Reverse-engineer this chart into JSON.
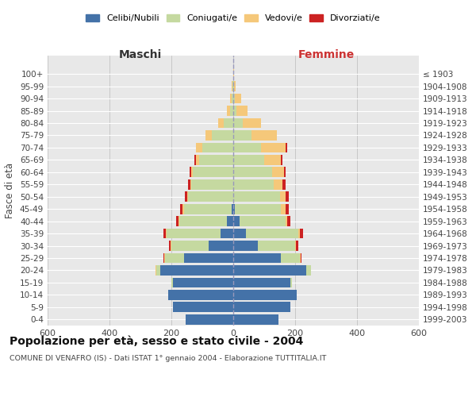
{
  "age_groups": [
    "0-4",
    "5-9",
    "10-14",
    "15-19",
    "20-24",
    "25-29",
    "30-34",
    "35-39",
    "40-44",
    "45-49",
    "50-54",
    "55-59",
    "60-64",
    "65-69",
    "70-74",
    "75-79",
    "80-84",
    "85-89",
    "90-94",
    "95-99",
    "100+"
  ],
  "birth_years": [
    "1999-2003",
    "1994-1998",
    "1989-1993",
    "1984-1988",
    "1979-1983",
    "1974-1978",
    "1969-1973",
    "1964-1968",
    "1959-1963",
    "1954-1958",
    "1949-1953",
    "1944-1948",
    "1939-1943",
    "1934-1938",
    "1929-1933",
    "1924-1928",
    "1919-1923",
    "1914-1918",
    "1909-1913",
    "1904-1908",
    "≤ 1903"
  ],
  "male_celibi": [
    155,
    195,
    210,
    195,
    235,
    160,
    80,
    40,
    20,
    5,
    0,
    0,
    0,
    0,
    0,
    0,
    0,
    0,
    0,
    0,
    0
  ],
  "male_coniugati": [
    0,
    0,
    0,
    5,
    15,
    60,
    120,
    175,
    155,
    155,
    145,
    135,
    130,
    110,
    100,
    70,
    30,
    10,
    5,
    2,
    0
  ],
  "male_vedovi": [
    0,
    0,
    0,
    0,
    2,
    2,
    2,
    2,
    2,
    3,
    3,
    3,
    5,
    10,
    20,
    20,
    20,
    10,
    5,
    2,
    0
  ],
  "male_divorziati": [
    0,
    0,
    0,
    0,
    0,
    3,
    5,
    8,
    8,
    8,
    8,
    8,
    5,
    5,
    0,
    0,
    0,
    0,
    0,
    0,
    0
  ],
  "female_celibi": [
    145,
    185,
    205,
    185,
    235,
    155,
    80,
    40,
    20,
    5,
    0,
    0,
    0,
    0,
    0,
    0,
    0,
    0,
    0,
    0,
    0
  ],
  "female_coniugati": [
    0,
    0,
    0,
    5,
    15,
    60,
    120,
    170,
    150,
    150,
    150,
    130,
    125,
    100,
    90,
    60,
    30,
    10,
    5,
    2,
    0
  ],
  "female_vedovi": [
    0,
    0,
    0,
    0,
    2,
    3,
    3,
    5,
    5,
    15,
    20,
    30,
    40,
    55,
    80,
    80,
    60,
    35,
    20,
    5,
    2
  ],
  "female_divorziati": [
    0,
    0,
    0,
    0,
    0,
    3,
    8,
    10,
    10,
    10,
    10,
    8,
    5,
    5,
    5,
    0,
    0,
    0,
    0,
    0,
    0
  ],
  "colors": {
    "celibi": "#4472a8",
    "coniugati": "#c5d9a0",
    "vedovi": "#f5c87a",
    "divorziati": "#cc2222"
  },
  "title": "Popolazione per età, sesso e stato civile - 2004",
  "subtitle": "COMUNE DI VENAFRO (IS) - Dati ISTAT 1° gennaio 2004 - Elaborazione TUTTITALIA.IT",
  "xlabel_left": "Maschi",
  "xlabel_right": "Femmine",
  "ylabel_left": "Fasce di età",
  "xlim": 600,
  "bg_color": "#ffffff",
  "plot_bg": "#e8e8e8",
  "grid_color": "#bbbbbb"
}
